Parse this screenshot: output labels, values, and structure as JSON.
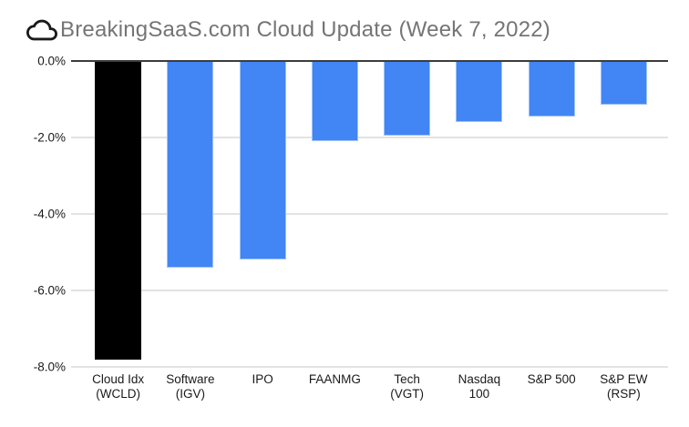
{
  "title": {
    "icon": "cloud-icon",
    "text": "BreakingSaaS.com Cloud Update (Week 7, 2022)"
  },
  "chart_data": {
    "type": "bar",
    "title": "BreakingSaaS.com Cloud Update (Week 7, 2022)",
    "orientation": "vertical",
    "categories": [
      "Cloud Idx\n(WCLD)",
      "Software\n(IGV)",
      "IPO",
      "FAANMG",
      "Tech\n(VGT)",
      "Nasdaq\n100",
      "S&P 500",
      "S&P EW\n(RSP)"
    ],
    "values": [
      -7.8,
      -5.4,
      -5.2,
      -2.1,
      -1.95,
      -1.6,
      -1.45,
      -1.15
    ],
    "unit": "%",
    "xlabel": "",
    "ylabel": "",
    "ylim": [
      -8,
      0
    ],
    "yticks": [
      0,
      -2,
      -4,
      -6,
      -8
    ],
    "ytick_labels": [
      "0.0%",
      "-2.0%",
      "-4.0%",
      "-6.0%",
      "-8.0%"
    ],
    "bar_colors": [
      "#000000",
      "#4285f4",
      "#4285f4",
      "#4285f4",
      "#4285f4",
      "#4285f4",
      "#4285f4",
      "#4285f4"
    ],
    "grid": true,
    "legend": "none",
    "background": "#ffffff"
  },
  "colors": {
    "bar_blue": "#4285f4",
    "bar_black": "#000000",
    "bar_stroke": "#9ec2f8",
    "gridline": "#e3e3e3",
    "zero_line": "#3c3c3c",
    "title_text": "#757575",
    "axis_text": "#1a1a1a",
    "background": "#ffffff"
  }
}
